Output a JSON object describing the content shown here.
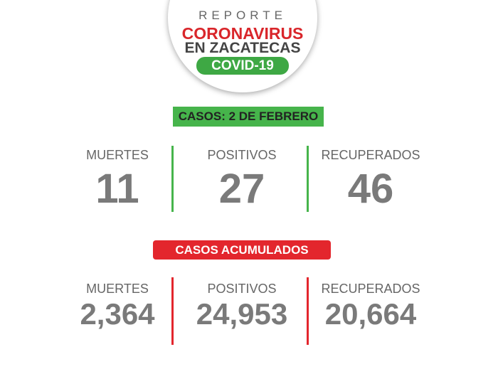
{
  "header": {
    "kicker": "REPORTE",
    "title": "CORONAVIRUS",
    "subtitle": "EN ZACATECAS",
    "badge": "COVID-19"
  },
  "daily": {
    "title": "CASOS: 2 DE FEBRERO",
    "items": [
      {
        "label": "MUERTES",
        "value": "11"
      },
      {
        "label": "POSITIVOS",
        "value": "27"
      },
      {
        "label": "RECUPERADOS",
        "value": "46"
      }
    ]
  },
  "cumulative": {
    "title": "CASOS ACUMULADOS",
    "items": [
      {
        "label": "MUERTES",
        "value": "2,364"
      },
      {
        "label": "POSITIVOS",
        "value": "24,953"
      },
      {
        "label": "RECUPERADOS",
        "value": "20,664"
      }
    ]
  }
}
